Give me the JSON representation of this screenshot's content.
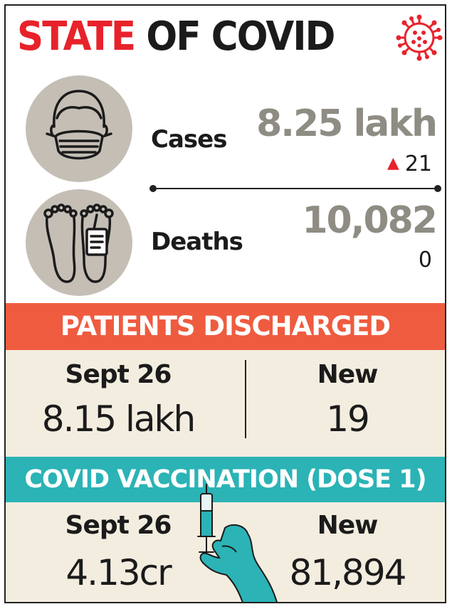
{
  "title": {
    "part_red": "STATE",
    "part_dark": "OF COVID"
  },
  "stats": {
    "cases": {
      "label": "Cases",
      "value": "8.25 lakh",
      "change": "21",
      "change_direction": "up"
    },
    "deaths": {
      "label": "Deaths",
      "value": "10,082",
      "change": "0"
    }
  },
  "discharged": {
    "banner": "PATIENTS DISCHARGED",
    "left": {
      "heading": "Sept 26",
      "value": "8.15 lakh"
    },
    "right": {
      "heading": "New",
      "value": "19"
    }
  },
  "vaccination": {
    "banner": "COVID VACCINATION (DOSE 1)",
    "left": {
      "heading": "Sept 26",
      "value": "4.13cr"
    },
    "right": {
      "heading": "New",
      "value": "81,894"
    }
  },
  "icons": [
    "virus-icon",
    "face-mask-icon",
    "feet-tag-icon",
    "syringe-hand-icon"
  ],
  "colors": {
    "title_red": "#e8222b",
    "value_grey": "#8e8c83",
    "discharged_banner": "#ef5b3f",
    "vaccination_banner": "#2bb3b6",
    "panel_bg": "#f3ede0",
    "icon_circle": "#c4beb5"
  }
}
